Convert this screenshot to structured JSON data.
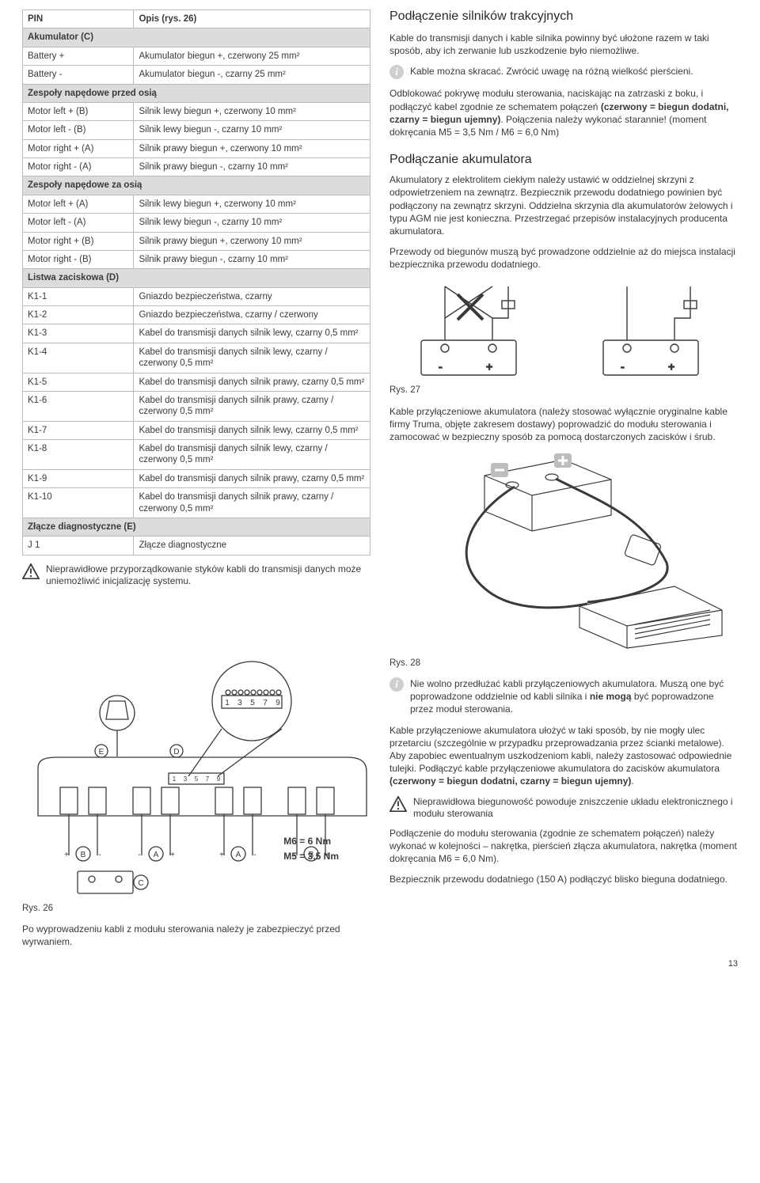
{
  "table": {
    "header": {
      "c1": "PIN",
      "c2": "Opis (rys. 26)"
    },
    "sections": [
      {
        "title": "Akumulator (C)",
        "rows": [
          {
            "c1": "Battery +",
            "c2": "Akumulator biegun +, czerwony 25 mm²"
          },
          {
            "c1": "Battery -",
            "c2": "Akumulator biegun -, czarny 25 mm²"
          }
        ]
      },
      {
        "title": "Zespoły napędowe przed osią",
        "rows": [
          {
            "c1": "Motor left + (B)",
            "c2": "Silnik lewy biegun +, czerwony 10 mm²"
          },
          {
            "c1": "Motor left - (B)",
            "c2": "Silnik lewy biegun -, czarny 10 mm²"
          },
          {
            "c1": "Motor right + (A)",
            "c2": "Silnik prawy biegun +, czerwony 10 mm²"
          },
          {
            "c1": "Motor right - (A)",
            "c2": "Silnik prawy biegun -, czarny 10 mm²"
          }
        ]
      },
      {
        "title": "Zespoły napędowe za osią",
        "rows": [
          {
            "c1": "Motor left + (A)",
            "c2": "Silnik lewy biegun +, czerwony 10 mm²"
          },
          {
            "c1": "Motor left - (A)",
            "c2": "Silnik lewy biegun -, czarny 10 mm²"
          },
          {
            "c1": "Motor right + (B)",
            "c2": "Silnik prawy biegun +, czerwony 10 mm²"
          },
          {
            "c1": "Motor right - (B)",
            "c2": "Silnik prawy biegun -, czarny 10 mm²"
          }
        ]
      },
      {
        "title": "Listwa zaciskowa (D)",
        "rows": [
          {
            "c1": "K1-1",
            "c2": "Gniazdo bezpieczeństwa, czarny"
          },
          {
            "c1": "K1-2",
            "c2": "Gniazdo bezpieczeństwa, czarny / czerwony"
          },
          {
            "c1": "K1-3",
            "c2": "Kabel do transmisji danych silnik lewy, czarny 0,5 mm²"
          },
          {
            "c1": "K1-4",
            "c2": "Kabel do transmisji danych silnik lewy, czarny / czerwony 0,5 mm²"
          },
          {
            "c1": "K1-5",
            "c2": "Kabel do transmisji danych silnik prawy, czarny 0,5 mm²"
          },
          {
            "c1": "K1-6",
            "c2": "Kabel do transmisji danych silnik prawy, czarny / czerwony 0,5 mm²"
          },
          {
            "c1": "K1-7",
            "c2": "Kabel do transmisji danych silnik lewy, czarny 0,5 mm²"
          },
          {
            "c1": "K1-8",
            "c2": "Kabel do transmisji danych silnik lewy, czarny / czerwony 0,5 mm²"
          },
          {
            "c1": "K1-9",
            "c2": "Kabel do transmisji danych silnik prawy, czarny 0,5 mm²"
          },
          {
            "c1": "K1-10",
            "c2": "Kabel do transmisji danych silnik prawy, czarny / czerwony 0,5 mm²"
          }
        ]
      },
      {
        "title": "Złącze diagnostyczne (E)",
        "rows": [
          {
            "c1": "J 1",
            "c2": "Złącze diagnostyczne"
          }
        ]
      }
    ]
  },
  "warn1": "Nieprawidłowe przyporządkowanie styków kabli do transmisji danych może uniemożliwić inicjalizację systemu.",
  "right": {
    "h1": "Podłączenie silników trakcyjnych",
    "p1": "Kable do transmisji danych i kable silnika powinny być ułożone razem w taki sposób, aby ich zerwanie lub uszkodzenie było niemożliwe.",
    "info1": "Kable można skracać. Zwrócić uwagę na różną wielkość pierścieni.",
    "p2": "Odblokować pokrywę modułu sterowania, naciskając na zatrzaski z boku, i podłączyć kabel zgodnie ze schematem połączeń (czerwony = biegun dodatni, czarny = biegun ujemny). Połączenia należy wykonać starannie! (moment dokręcania M5 = 3,5 Nm / M6 = 6,0 Nm)",
    "h2": "Podłączanie akumulatora",
    "p3": "Akumulatory z elektrolitem ciekłym należy ustawić w oddzielnej skrzyni z odpowietrzeniem na zewnątrz. Bezpiecznik przewodu dodatniego powinien być podłączony na zewnątrz skrzyni. Oddzielna skrzynia dla akumulatorów żelowych i typu AGM nie jest konieczna. Przestrzegać przepisów instalacyjnych producenta akumulatora.",
    "p4": "Przewody od biegunów muszą być prowadzone oddzielnie aż do miejsca instalacji bezpiecznika przewodu dodatniego.",
    "fig27cap": "Rys. 27",
    "p5": "Kable przyłączeniowe akumulatora (należy stosować wyłącznie oryginalne kable firmy Truma, objęte zakresem dostawy) poprowadzić do modułu sterowania i zamocować w bezpieczny sposób za pomocą dostarczonych zacisków i śrub.",
    "fig28cap": "Rys. 28",
    "info2": "Nie wolno przedłużać kabli przyłączeniowych akumulatora. Muszą one być poprowadzone oddzielnie od kabli silnika i nie mogą być poprowadzone przez moduł sterowania.",
    "p6": "Kable przyłączeniowe akumulatora ułożyć w taki sposób, by nie mogły ulec przetarciu (szczególnie w przypadku przeprowadzania przez ścianki metalowe). Aby zapobiec ewentualnym uszkodzeniom kabli, należy zastosować odpowiednie tulejki. Podłączyć kable przyłączeniowe akumulatora do zacisków akumulatora (czerwony = biegun dodatni, czarny = biegun ujemny).",
    "warn2": "Nieprawidłowa biegunowość powoduje zniszczenie układu elektronicznego i modułu sterowania",
    "p7": "Podłączenie do modułu sterowania (zgodnie ze schematem połączeń) należy wykonać w kolejności – nakrętka, pierścień złącza akumulatora, nakrętka (moment dokręcania M6 = 6,0 Nm).",
    "p8": "Bezpiecznik przewodu dodatniego (150 A) podłączyć blisko bieguna dodatniego."
  },
  "fig26": {
    "cap": "Rys. 26",
    "afterText": "Po wyprowadzeniu kabli z modułu sterowania należy je zabezpieczyć przed wyrwaniem.",
    "nm1": "M6 = 6 Nm",
    "nm2": "M5 = 3,5 Nm",
    "terminalLabels": [
      "1",
      "3",
      "5",
      "7",
      "9"
    ],
    "callouts": {
      "D": "D",
      "E": "E",
      "B": "B",
      "A": "A",
      "C": "C"
    }
  },
  "colors": {
    "text": "#3a3a3a",
    "border": "#bbbbbb",
    "section_bg": "#dcdcdc",
    "icon_bg": "#cfcfcf",
    "stroke": "#3a3a3a"
  },
  "pagenum": "13"
}
